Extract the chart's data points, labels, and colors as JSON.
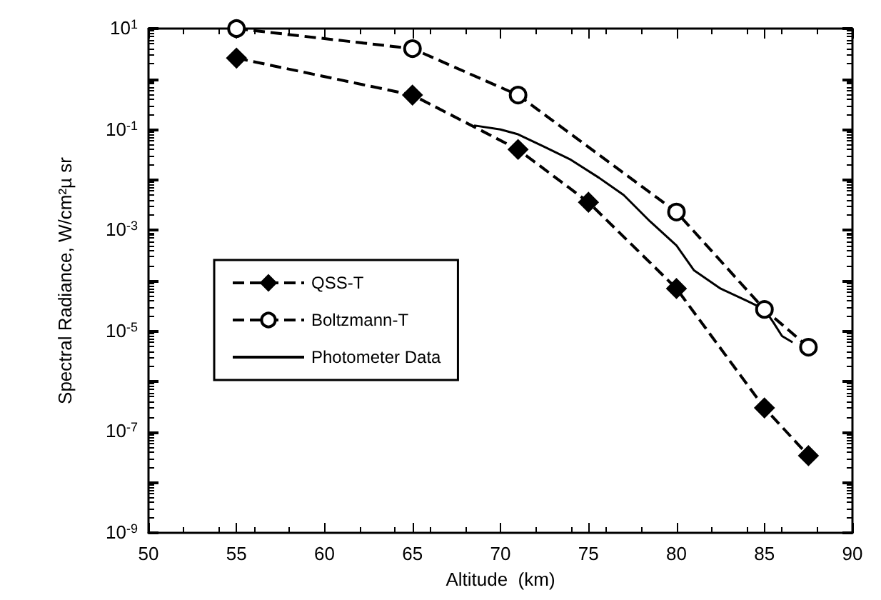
{
  "chart_data": {
    "type": "line",
    "xlabel": "Altitude  (km)",
    "ylabel": "Spectral Radiance, W/cm²µ sr",
    "log": "y",
    "grid": false,
    "legend": "left",
    "xlim": [
      50,
      90
    ],
    "xticks": [
      50,
      55,
      60,
      65,
      70,
      75,
      80,
      85,
      90
    ],
    "ylim": [
      1e-09,
      10
    ],
    "yticks": [
      {
        "value": 10,
        "label": "10$^{1}$"
      },
      {
        "value": 1,
        "label": null
      },
      {
        "value": 0.1,
        "label": "10$^{-1}$"
      },
      {
        "value": 0.01,
        "label": null
      },
      {
        "value": 0.001,
        "label": "10$^{-3}$"
      },
      {
        "value": 0.0001,
        "label": null
      },
      {
        "value": 1e-05,
        "label": "10$^{-5}$"
      },
      {
        "value": 1e-06,
        "label": null
      },
      {
        "value": 1e-07,
        "label": "10$^{-7}$"
      },
      {
        "value": 1e-08,
        "label": null
      },
      {
        "value": 1e-09,
        "label": "10$^{-9}$"
      }
    ],
    "series": [
      {
        "name": "QSS-T",
        "color": "#000000",
        "marker": "diamond",
        "line_style": "dashed",
        "x": [
          55,
          65,
          71,
          75,
          80,
          85,
          87.5
        ],
        "values": [
          2.6,
          0.48,
          0.04,
          0.0036,
          7e-05,
          3e-07,
          3.4e-08
        ]
      },
      {
        "name": "Boltzmann-T",
        "color": "#000000",
        "marker": "circle",
        "line_style": "dashed",
        "x": [
          55,
          65,
          71,
          80,
          85,
          87.5
        ],
        "values": [
          10,
          4,
          0.48,
          0.0023,
          2.7e-05,
          4.8e-06
        ]
      },
      {
        "name": "Photometer Data",
        "color": "#000000",
        "marker": "none",
        "line_style": "solid",
        "x": [
          68.5,
          70,
          71,
          72.5,
          74,
          75.6,
          77,
          78.5,
          80,
          81,
          82.5,
          84,
          85,
          85.5,
          86,
          86.6
        ],
        "values": [
          0.12,
          0.1,
          0.08,
          0.045,
          0.025,
          0.011,
          0.005,
          0.0015,
          0.0005,
          0.00016,
          7e-05,
          4e-05,
          2.7e-05,
          1.5e-05,
          8e-06,
          6e-06
        ]
      }
    ]
  }
}
